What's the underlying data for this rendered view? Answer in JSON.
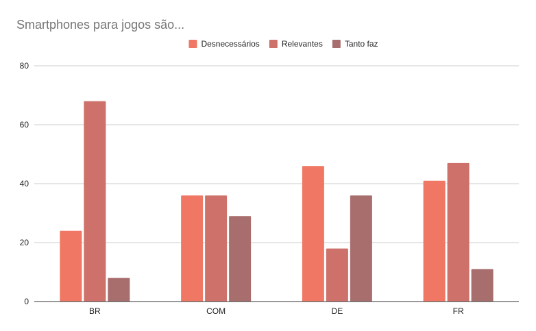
{
  "chart_data": {
    "type": "bar",
    "title": "Smartphones para jogos são...",
    "xlabel": "",
    "ylabel": "",
    "categories": [
      "BR",
      "COM",
      "DE",
      "FR"
    ],
    "series": [
      {
        "name": "Desnecessários",
        "values": [
          24,
          36,
          46,
          41
        ],
        "color": "#f07763"
      },
      {
        "name": "Relevantes",
        "values": [
          68,
          36,
          18,
          47
        ],
        "color": "#cd716a"
      },
      {
        "name": "Tanto faz",
        "values": [
          8,
          29,
          36,
          11
        ],
        "color": "#a86d6d"
      }
    ],
    "ylim": [
      0,
      80
    ],
    "yticks": [
      "0",
      "20",
      "40",
      "60",
      "80"
    ],
    "grid": true,
    "legend_position": "top-center"
  }
}
